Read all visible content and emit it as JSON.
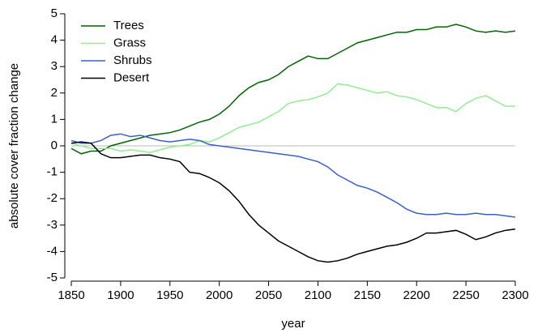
{
  "chart_data": {
    "type": "line",
    "x_label": "year",
    "y_label": "absolute cover fraction change",
    "x": [
      1850,
      1860,
      1870,
      1880,
      1890,
      1900,
      1910,
      1920,
      1930,
      1940,
      1950,
      1960,
      1970,
      1980,
      1990,
      2000,
      2010,
      2020,
      2030,
      2040,
      2050,
      2060,
      2070,
      2080,
      2090,
      2100,
      2110,
      2120,
      2130,
      2140,
      2150,
      2160,
      2170,
      2180,
      2190,
      2200,
      2210,
      2220,
      2230,
      2240,
      2250,
      2260,
      2270,
      2280,
      2290,
      2300
    ],
    "series": [
      {
        "name": "Trees",
        "color": "#006400",
        "values": [
          -0.1,
          -0.3,
          -0.2,
          -0.2,
          0.0,
          0.1,
          0.2,
          0.3,
          0.4,
          0.45,
          0.5,
          0.6,
          0.75,
          0.9,
          1.0,
          1.2,
          1.5,
          1.9,
          2.2,
          2.4,
          2.5,
          2.7,
          3.0,
          3.2,
          3.4,
          3.3,
          3.3,
          3.5,
          3.7,
          3.9,
          4.0,
          4.1,
          4.2,
          4.3,
          4.3,
          4.4,
          4.4,
          4.5,
          4.5,
          4.6,
          4.5,
          4.35,
          4.3,
          4.35,
          4.3,
          4.35
        ]
      },
      {
        "name": "Grass",
        "color": "#90ee90",
        "values": [
          0.1,
          0.0,
          -0.1,
          -0.1,
          -0.1,
          -0.2,
          -0.15,
          -0.2,
          -0.25,
          -0.15,
          -0.05,
          0.0,
          0.05,
          0.2,
          0.15,
          0.3,
          0.5,
          0.7,
          0.8,
          0.9,
          1.1,
          1.3,
          1.6,
          1.7,
          1.75,
          1.85,
          2.0,
          2.35,
          2.3,
          2.2,
          2.1,
          2.0,
          2.05,
          1.9,
          1.85,
          1.75,
          1.6,
          1.45,
          1.45,
          1.3,
          1.6,
          1.8,
          1.9,
          1.7,
          1.5,
          1.5
        ]
      },
      {
        "name": "Shrubs",
        "color": "#3a5fcd",
        "values": [
          0.2,
          0.1,
          0.1,
          0.2,
          0.4,
          0.45,
          0.35,
          0.4,
          0.3,
          0.2,
          0.15,
          0.2,
          0.25,
          0.2,
          0.05,
          0.0,
          -0.05,
          -0.1,
          -0.15,
          -0.2,
          -0.25,
          -0.3,
          -0.35,
          -0.4,
          -0.5,
          -0.6,
          -0.8,
          -1.1,
          -1.3,
          -1.5,
          -1.6,
          -1.75,
          -1.95,
          -2.15,
          -2.4,
          -2.55,
          -2.6,
          -2.6,
          -2.55,
          -2.6,
          -2.6,
          -2.55,
          -2.6,
          -2.6,
          -2.65,
          -2.7
        ]
      },
      {
        "name": "Desert",
        "color": "#000000",
        "values": [
          0.1,
          0.15,
          0.1,
          -0.3,
          -0.45,
          -0.45,
          -0.4,
          -0.35,
          -0.35,
          -0.45,
          -0.5,
          -0.6,
          -1.0,
          -1.05,
          -1.2,
          -1.4,
          -1.7,
          -2.1,
          -2.6,
          -3.0,
          -3.3,
          -3.6,
          -3.8,
          -4.0,
          -4.2,
          -4.35,
          -4.4,
          -4.35,
          -4.25,
          -4.1,
          -4.0,
          -3.9,
          -3.8,
          -3.75,
          -3.65,
          -3.5,
          -3.3,
          -3.3,
          -3.25,
          -3.2,
          -3.35,
          -3.55,
          -3.45,
          -3.3,
          -3.2,
          -3.15
        ]
      }
    ],
    "xlim": [
      1850,
      2300
    ],
    "xticks": [
      1850,
      1900,
      1950,
      2000,
      2050,
      2100,
      2150,
      2200,
      2250,
      2300
    ],
    "ylim": [
      -5,
      5
    ],
    "yticks": [
      -5,
      -4,
      -3,
      -2,
      -1,
      0,
      1,
      2,
      3,
      4,
      5
    ],
    "reference_line": 0,
    "legend": "top-left"
  }
}
